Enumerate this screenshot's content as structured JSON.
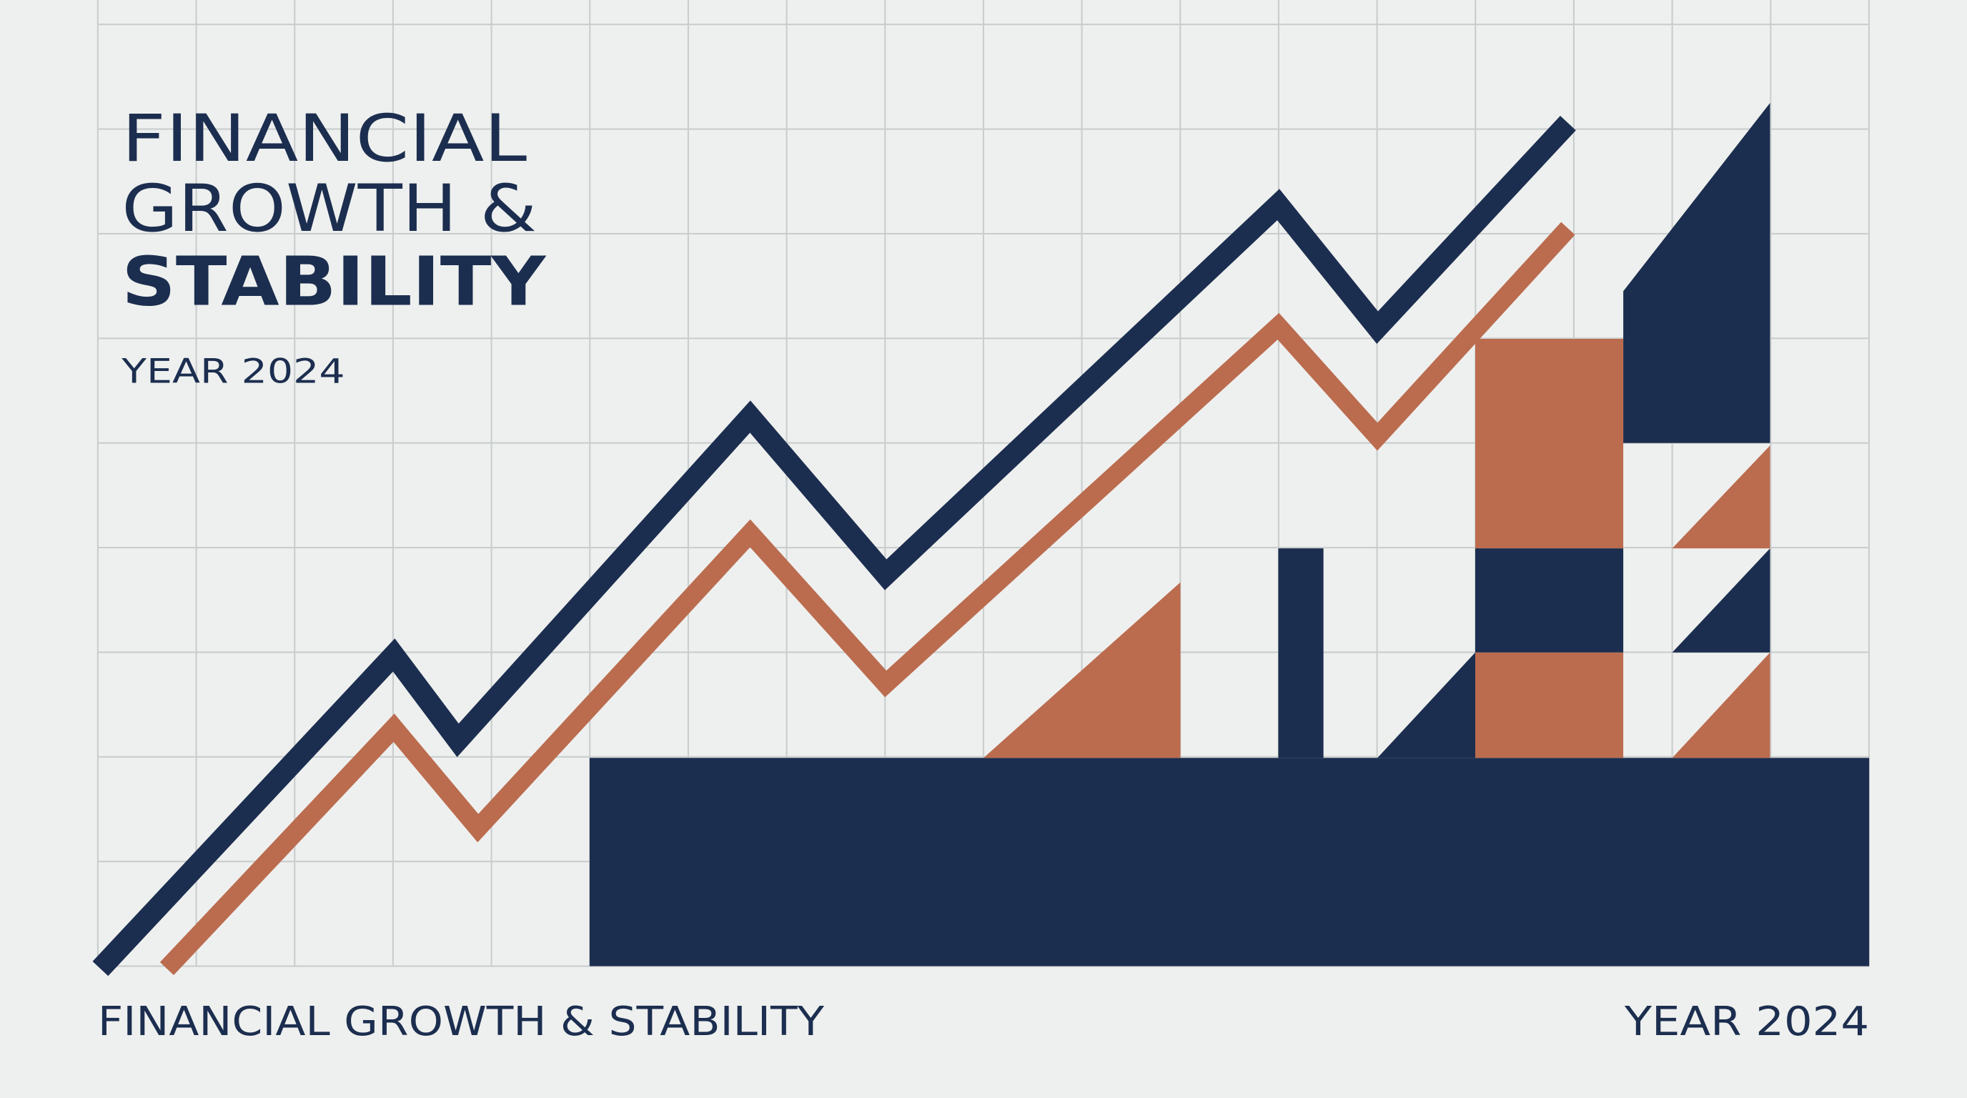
{
  "header": {
    "title_lines": [
      "FINANCIAL",
      "GROWTH &",
      "STABILITY"
    ],
    "year": "YEAR 2024"
  },
  "footer": {
    "title": "FINANCIAL GROWTH & STABILITY",
    "year": "YEAR 2024"
  }
}
